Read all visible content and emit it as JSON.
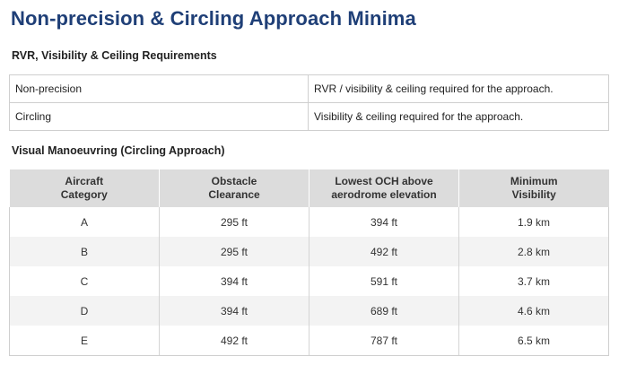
{
  "title": "Non-precision & Circling Approach Minima",
  "requirements": {
    "heading": "RVR, Visibility & Ceiling Requirements",
    "rows": [
      {
        "type": "Non-precision",
        "requirement": "RVR / visibility & ceiling required for the approach."
      },
      {
        "type": "Circling",
        "requirement": "Visibility & ceiling required for the approach."
      }
    ]
  },
  "visual_manoeuvring": {
    "heading": "Visual Manoeuvring (Circling Approach)",
    "headers": [
      [
        "Aircraft",
        "Category"
      ],
      [
        "Obstacle",
        "Clearance"
      ],
      [
        "Lowest OCH above",
        "aerodrome elevation"
      ],
      [
        "Minimum",
        "Visibility"
      ]
    ],
    "rows": [
      [
        "A",
        "295 ft",
        "394 ft",
        "1.9 km"
      ],
      [
        "B",
        "295 ft",
        "492 ft",
        "2.8 km"
      ],
      [
        "C",
        "394 ft",
        "591 ft",
        "3.7 km"
      ],
      [
        "D",
        "394 ft",
        "689 ft",
        "4.6 km"
      ],
      [
        "E",
        "492 ft",
        "787 ft",
        "6.5 km"
      ]
    ]
  },
  "colors": {
    "title": "#1f3f77",
    "header_bg": "#dcdcdc",
    "row_alt_bg": "#f3f3f3",
    "border": "#cfcfcf"
  }
}
